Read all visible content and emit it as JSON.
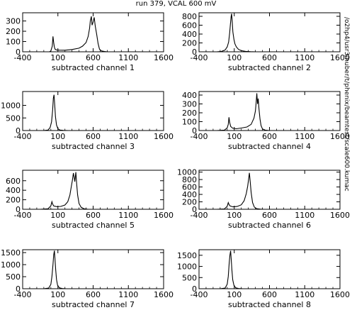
{
  "title": "run 379, VCAL 600 mV",
  "side_label": "/o2hp4/usr3/nuber/t/phenix/beamtest/scale600.kumac",
  "chart_data": [
    {
      "type": "histogram",
      "xlabel": "subtracted channel  1",
      "xlim": [
        -400,
        1600
      ],
      "xticks": [
        -400,
        100,
        600,
        1100,
        1600
      ],
      "ylim": [
        0,
        380
      ],
      "yticks": [
        0,
        100,
        200,
        300
      ],
      "points": [
        [
          -400,
          0
        ],
        [
          -200,
          0
        ],
        [
          -20,
          0
        ],
        [
          0,
          8
        ],
        [
          20,
          55
        ],
        [
          30,
          150
        ],
        [
          40,
          90
        ],
        [
          50,
          45
        ],
        [
          60,
          25
        ],
        [
          80,
          18
        ],
        [
          120,
          16
        ],
        [
          200,
          15
        ],
        [
          300,
          22
        ],
        [
          400,
          35
        ],
        [
          450,
          55
        ],
        [
          500,
          90
        ],
        [
          530,
          150
        ],
        [
          550,
          230
        ],
        [
          560,
          300
        ],
        [
          575,
          345
        ],
        [
          585,
          260
        ],
        [
          600,
          290
        ],
        [
          615,
          335
        ],
        [
          630,
          250
        ],
        [
          650,
          170
        ],
        [
          670,
          80
        ],
        [
          690,
          25
        ],
        [
          720,
          8
        ],
        [
          760,
          3
        ],
        [
          800,
          0
        ],
        [
          1600,
          0
        ]
      ]
    },
    {
      "type": "histogram",
      "xlabel": "subtracted channel  2",
      "xlim": [
        -400,
        1600
      ],
      "xticks": [
        -400,
        100,
        600,
        1100,
        1600
      ],
      "ylim": [
        0,
        880
      ],
      "yticks": [
        0,
        200,
        400,
        600,
        800
      ],
      "points": [
        [
          -400,
          0
        ],
        [
          -150,
          0
        ],
        [
          -80,
          10
        ],
        [
          -30,
          40
        ],
        [
          0,
          110
        ],
        [
          20,
          220
        ],
        [
          35,
          430
        ],
        [
          45,
          620
        ],
        [
          55,
          790
        ],
        [
          62,
          860
        ],
        [
          70,
          700
        ],
        [
          80,
          450
        ],
        [
          95,
          280
        ],
        [
          110,
          180
        ],
        [
          130,
          110
        ],
        [
          160,
          55
        ],
        [
          200,
          25
        ],
        [
          260,
          10
        ],
        [
          330,
          3
        ],
        [
          400,
          0
        ],
        [
          1600,
          0
        ]
      ]
    },
    {
      "type": "histogram",
      "xlabel": "subtracted channel  3",
      "xlim": [
        -400,
        1600
      ],
      "xticks": [
        -400,
        100,
        600,
        1100,
        1600
      ],
      "ylim": [
        0,
        1550
      ],
      "yticks": [
        0,
        500,
        1000
      ],
      "points": [
        [
          -400,
          0
        ],
        [
          -100,
          0
        ],
        [
          -40,
          20
        ],
        [
          -10,
          120
        ],
        [
          10,
          350
        ],
        [
          25,
          800
        ],
        [
          35,
          1280
        ],
        [
          45,
          1420
        ],
        [
          55,
          1000
        ],
        [
          65,
          550
        ],
        [
          80,
          220
        ],
        [
          100,
          70
        ],
        [
          130,
          20
        ],
        [
          180,
          5
        ],
        [
          250,
          0
        ],
        [
          1600,
          0
        ]
      ]
    },
    {
      "type": "histogram",
      "xlabel": "subtracted channel  4",
      "xlim": [
        -400,
        1600
      ],
      "xticks": [
        -400,
        100,
        600,
        1100,
        1600
      ],
      "ylim": [
        0,
        440
      ],
      "yticks": [
        0,
        100,
        200,
        300,
        400
      ],
      "points": [
        [
          -400,
          0
        ],
        [
          -150,
          0
        ],
        [
          -40,
          5
        ],
        [
          0,
          30
        ],
        [
          15,
          70
        ],
        [
          25,
          150
        ],
        [
          35,
          90
        ],
        [
          50,
          45
        ],
        [
          80,
          25
        ],
        [
          130,
          20
        ],
        [
          200,
          28
        ],
        [
          280,
          40
        ],
        [
          340,
          70
        ],
        [
          380,
          140
        ],
        [
          400,
          220
        ],
        [
          410,
          310
        ],
        [
          420,
          420
        ],
        [
          430,
          300
        ],
        [
          440,
          360
        ],
        [
          450,
          250
        ],
        [
          465,
          130
        ],
        [
          480,
          55
        ],
        [
          500,
          18
        ],
        [
          540,
          5
        ],
        [
          600,
          0
        ],
        [
          1600,
          0
        ]
      ]
    },
    {
      "type": "histogram",
      "xlabel": "subtracted channel  5",
      "xlim": [
        -400,
        1600
      ],
      "xticks": [
        -400,
        100,
        600,
        1100,
        1600
      ],
      "ylim": [
        0,
        820
      ],
      "yticks": [
        0,
        200,
        400,
        600
      ],
      "points": [
        [
          -400,
          0
        ],
        [
          -150,
          0
        ],
        [
          -40,
          10
        ],
        [
          0,
          70
        ],
        [
          15,
          160
        ],
        [
          25,
          110
        ],
        [
          40,
          70
        ],
        [
          80,
          55
        ],
        [
          140,
          60
        ],
        [
          200,
          90
        ],
        [
          240,
          160
        ],
        [
          270,
          300
        ],
        [
          290,
          480
        ],
        [
          305,
          600
        ],
        [
          320,
          760
        ],
        [
          330,
          680
        ],
        [
          340,
          580
        ],
        [
          355,
          780
        ],
        [
          365,
          560
        ],
        [
          380,
          300
        ],
        [
          400,
          120
        ],
        [
          430,
          40
        ],
        [
          470,
          10
        ],
        [
          530,
          0
        ],
        [
          1600,
          0
        ]
      ]
    },
    {
      "type": "histogram",
      "xlabel": "subtracted channel  6",
      "xlim": [
        -400,
        1600
      ],
      "xticks": [
        -400,
        100,
        600,
        1100,
        1600
      ],
      "ylim": [
        0,
        1050
      ],
      "yticks": [
        0,
        200,
        400,
        600,
        800,
        1000
      ],
      "points": [
        [
          -400,
          0
        ],
        [
          -150,
          0
        ],
        [
          -40,
          10
        ],
        [
          0,
          80
        ],
        [
          15,
          180
        ],
        [
          25,
          130
        ],
        [
          40,
          90
        ],
        [
          80,
          65
        ],
        [
          140,
          75
        ],
        [
          200,
          120
        ],
        [
          240,
          230
        ],
        [
          270,
          420
        ],
        [
          290,
          620
        ],
        [
          305,
          820
        ],
        [
          315,
          980
        ],
        [
          325,
          780
        ],
        [
          340,
          450
        ],
        [
          360,
          180
        ],
        [
          385,
          60
        ],
        [
          420,
          15
        ],
        [
          470,
          3
        ],
        [
          520,
          0
        ],
        [
          1600,
          0
        ]
      ]
    },
    {
      "type": "histogram",
      "xlabel": "subtracted channel  7",
      "xlim": [
        -400,
        1600
      ],
      "xticks": [
        -400,
        100,
        600,
        1100,
        1600
      ],
      "ylim": [
        0,
        1620
      ],
      "yticks": [
        0,
        500,
        1000,
        1500
      ],
      "points": [
        [
          -400,
          0
        ],
        [
          -100,
          0
        ],
        [
          -30,
          30
        ],
        [
          0,
          180
        ],
        [
          15,
          500
        ],
        [
          30,
          1000
        ],
        [
          40,
          1400
        ],
        [
          50,
          1580
        ],
        [
          58,
          1250
        ],
        [
          68,
          800
        ],
        [
          80,
          380
        ],
        [
          95,
          140
        ],
        [
          120,
          40
        ],
        [
          160,
          10
        ],
        [
          220,
          0
        ],
        [
          1600,
          0
        ]
      ]
    },
    {
      "type": "histogram",
      "xlabel": "subtracted channel  8",
      "xlim": [
        -400,
        1600
      ],
      "xticks": [
        -400,
        100,
        600,
        1100,
        1600
      ],
      "ylim": [
        0,
        1750
      ],
      "yticks": [
        0,
        500,
        1000,
        1500
      ],
      "points": [
        [
          -400,
          0
        ],
        [
          -100,
          0
        ],
        [
          -30,
          30
        ],
        [
          0,
          200
        ],
        [
          15,
          550
        ],
        [
          28,
          1150
        ],
        [
          38,
          1500
        ],
        [
          48,
          1700
        ],
        [
          56,
          1350
        ],
        [
          66,
          850
        ],
        [
          78,
          400
        ],
        [
          95,
          150
        ],
        [
          120,
          45
        ],
        [
          160,
          10
        ],
        [
          220,
          0
        ],
        [
          1600,
          0
        ]
      ]
    }
  ]
}
